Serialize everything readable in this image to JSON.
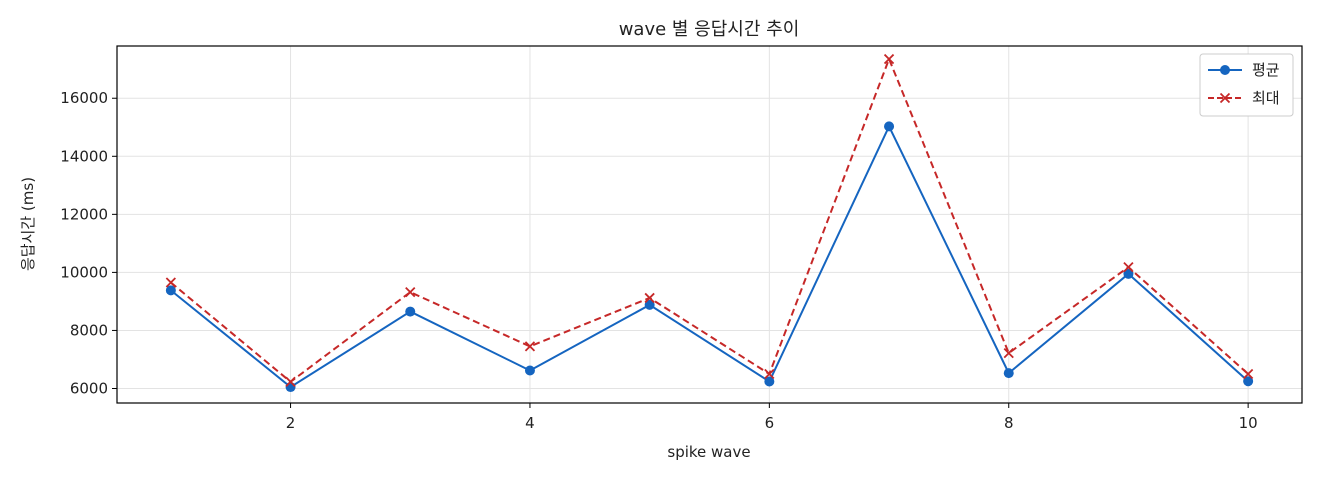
{
  "chart_data": {
    "type": "line",
    "title": "wave 별 응답시간 추이",
    "xlabel": "spike wave",
    "ylabel": "응답시간 (ms)",
    "x": [
      1,
      2,
      3,
      4,
      5,
      6,
      7,
      8,
      9,
      10
    ],
    "xlim": [
      0.55,
      10.45
    ],
    "ylim": [
      5500,
      17800
    ],
    "xticks": [
      2,
      4,
      6,
      8,
      10
    ],
    "yticks": [
      6000,
      8000,
      10000,
      12000,
      14000,
      16000
    ],
    "grid": true,
    "legend_position": "top-right",
    "series": [
      {
        "name": "평균",
        "values": [
          9380,
          6050,
          8650,
          6620,
          8880,
          6240,
          15030,
          6530,
          9950,
          6250
        ],
        "color": "#1565c0",
        "marker": "circle",
        "line_style": "solid"
      },
      {
        "name": "최대",
        "values": [
          9650,
          6230,
          9320,
          7450,
          9120,
          6500,
          17350,
          7220,
          10180,
          6500
        ],
        "color": "#c62828",
        "marker": "x",
        "line_style": "dashed"
      }
    ]
  }
}
